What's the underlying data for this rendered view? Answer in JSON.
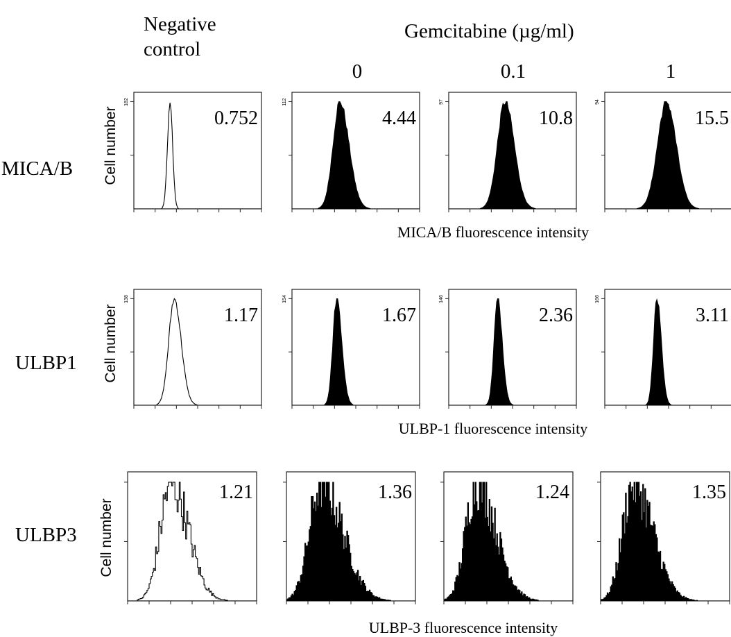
{
  "header": {
    "negative_control_line1": "Negative",
    "negative_control_line2": "control",
    "treatment_title": "Gemcitabine (µg/ml)",
    "concentrations": [
      "0",
      "0.1",
      "1"
    ]
  },
  "y_axis_label": "Cell number",
  "chart_data": [
    {
      "type": "histogram",
      "row_label": "MICA/B",
      "xlabel": "MICA/B fluorescence intensity",
      "ylabel": "Cell number",
      "x_scale": "log",
      "xlim": [
        0.01,
        10000
      ],
      "panels": [
        {
          "condition": "Negative control",
          "value_label": "0.752",
          "filled": false,
          "y_max_tick": "182",
          "peak_log10": -0.3,
          "width": 0.12,
          "skew": 0.0
        },
        {
          "condition": "0",
          "value_label": "4.44",
          "filled": true,
          "y_max_tick": "112",
          "peak_log10": 0.25,
          "width": 0.32,
          "skew": 0.35
        },
        {
          "condition": "0.1",
          "value_label": "10.8",
          "filled": true,
          "y_max_tick": "97",
          "peak_log10": 0.65,
          "width": 0.36,
          "skew": 0.2
        },
        {
          "condition": "1",
          "value_label": "15.5",
          "filled": true,
          "y_max_tick": "94",
          "peak_log10": 0.9,
          "width": 0.42,
          "skew": 0.1
        }
      ]
    },
    {
      "type": "histogram",
      "row_label": "ULBP1",
      "xlabel": "ULBP-1 fluorescence intensity",
      "ylabel": "Cell number",
      "x_scale": "log",
      "xlim": [
        0.01,
        10000
      ],
      "panels": [
        {
          "condition": "Negative control",
          "value_label": "1.17",
          "filled": false,
          "y_max_tick": "138",
          "peak_log10": -0.1,
          "width": 0.26,
          "skew": 0.25
        },
        {
          "condition": "0",
          "value_label": "1.67",
          "filled": true,
          "y_max_tick": "154",
          "peak_log10": 0.1,
          "width": 0.18,
          "skew": 0.35
        },
        {
          "condition": "0.1",
          "value_label": "2.36",
          "filled": true,
          "y_max_tick": "146",
          "peak_log10": 0.3,
          "width": 0.17,
          "skew": 0.3
        },
        {
          "condition": "1",
          "value_label": "3.11",
          "filled": true,
          "y_max_tick": "166",
          "peak_log10": 0.45,
          "width": 0.16,
          "skew": 0.3
        }
      ]
    },
    {
      "type": "histogram",
      "row_label": "ULBP3",
      "xlabel": "ULBP-3 fluorescence intensity",
      "ylabel": "Cell number",
      "x_scale": "log",
      "xlim": [
        0.01,
        10000
      ],
      "panels": [
        {
          "condition": "Negative control",
          "value_label": "1.21",
          "filled": false,
          "y_max_tick": "",
          "peak_log10": 0.0,
          "width": 0.5,
          "skew": 0.6
        },
        {
          "condition": "0",
          "value_label": "1.36",
          "filled": true,
          "y_max_tick": "",
          "peak_log10": -0.4,
          "width": 0.55,
          "skew": 0.8
        },
        {
          "condition": "0.1",
          "value_label": "1.24",
          "filled": true,
          "y_max_tick": "",
          "peak_log10": -0.5,
          "width": 0.5,
          "skew": 0.8
        },
        {
          "condition": "1",
          "value_label": "1.35",
          "filled": true,
          "y_max_tick": "",
          "peak_log10": -0.5,
          "width": 0.5,
          "skew": 0.8
        }
      ]
    }
  ]
}
